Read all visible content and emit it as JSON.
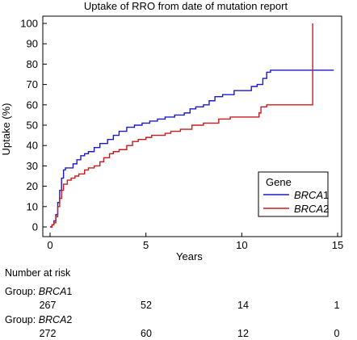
{
  "chart_data": {
    "type": "line",
    "subtype": "kaplan-meier step curve",
    "title": "Uptake of RRO from date of mutation report",
    "xlabel": "Years",
    "ylabel": "Uptake (%)",
    "xlim": [
      0,
      15
    ],
    "ylim": [
      0,
      100
    ],
    "xticks": [
      0,
      5,
      10,
      15
    ],
    "yticks": [
      0,
      10,
      20,
      30,
      40,
      50,
      60,
      70,
      80,
      90,
      100
    ],
    "grid": false,
    "legend": {
      "title": "Gene",
      "placement": "bottom-right"
    },
    "series": [
      {
        "name_prefix": "BRCA",
        "name_suffix": "1",
        "color": "#1a1acc",
        "points": [
          [
            0,
            0
          ],
          [
            0.1,
            1
          ],
          [
            0.2,
            3
          ],
          [
            0.3,
            6
          ],
          [
            0.4,
            12
          ],
          [
            0.5,
            18
          ],
          [
            0.6,
            24
          ],
          [
            0.7,
            28
          ],
          [
            0.8,
            29
          ],
          [
            1.0,
            29
          ],
          [
            1.2,
            31
          ],
          [
            1.4,
            33
          ],
          [
            1.6,
            35
          ],
          [
            1.8,
            36
          ],
          [
            2.0,
            37
          ],
          [
            2.3,
            39
          ],
          [
            2.6,
            41
          ],
          [
            3.0,
            43
          ],
          [
            3.3,
            45
          ],
          [
            3.6,
            47
          ],
          [
            4.0,
            49
          ],
          [
            4.4,
            50
          ],
          [
            4.8,
            51
          ],
          [
            5.2,
            52
          ],
          [
            5.6,
            53
          ],
          [
            6.0,
            54
          ],
          [
            6.5,
            55
          ],
          [
            7.0,
            56
          ],
          [
            7.3,
            58
          ],
          [
            7.6,
            59
          ],
          [
            8.0,
            60
          ],
          [
            8.3,
            62
          ],
          [
            8.6,
            64
          ],
          [
            9.0,
            65
          ],
          [
            9.6,
            67
          ],
          [
            10.5,
            69
          ],
          [
            10.8,
            70
          ],
          [
            11.1,
            73
          ],
          [
            11.3,
            76
          ],
          [
            11.5,
            77
          ],
          [
            14.8,
            77
          ]
        ]
      },
      {
        "name_prefix": "BRCA",
        "name_suffix": "2",
        "color": "#cc1a1a",
        "points": [
          [
            0,
            0
          ],
          [
            0.1,
            1
          ],
          [
            0.2,
            2
          ],
          [
            0.3,
            5
          ],
          [
            0.4,
            10
          ],
          [
            0.5,
            14
          ],
          [
            0.6,
            18
          ],
          [
            0.7,
            21
          ],
          [
            0.9,
            23
          ],
          [
            1.1,
            24
          ],
          [
            1.3,
            25
          ],
          [
            1.5,
            26
          ],
          [
            1.8,
            28
          ],
          [
            2.0,
            29
          ],
          [
            2.3,
            30
          ],
          [
            2.6,
            32
          ],
          [
            2.8,
            34
          ],
          [
            3.1,
            36
          ],
          [
            3.3,
            37
          ],
          [
            3.6,
            38
          ],
          [
            4.0,
            40
          ],
          [
            4.3,
            42
          ],
          [
            4.6,
            43
          ],
          [
            5.0,
            44
          ],
          [
            5.3,
            45
          ],
          [
            6.0,
            46
          ],
          [
            6.3,
            47
          ],
          [
            6.8,
            48
          ],
          [
            7.4,
            50
          ],
          [
            8.0,
            51
          ],
          [
            8.8,
            53
          ],
          [
            9.4,
            54
          ],
          [
            10.9,
            56
          ],
          [
            11.0,
            59
          ],
          [
            11.3,
            60
          ],
          [
            13.7,
            60
          ],
          [
            13.7,
            100
          ]
        ]
      }
    ]
  },
  "risk_table": {
    "heading": "Number at risk",
    "groups": [
      {
        "label_prefix": "Group: ",
        "gene_prefix": "BRCA",
        "gene_suffix": "1",
        "counts": [
          "267",
          "52",
          "14",
          "1"
        ]
      },
      {
        "label_prefix": "Group: ",
        "gene_prefix": "BRCA",
        "gene_suffix": "2",
        "counts": [
          "272",
          "60",
          "12",
          "0"
        ]
      }
    ]
  }
}
